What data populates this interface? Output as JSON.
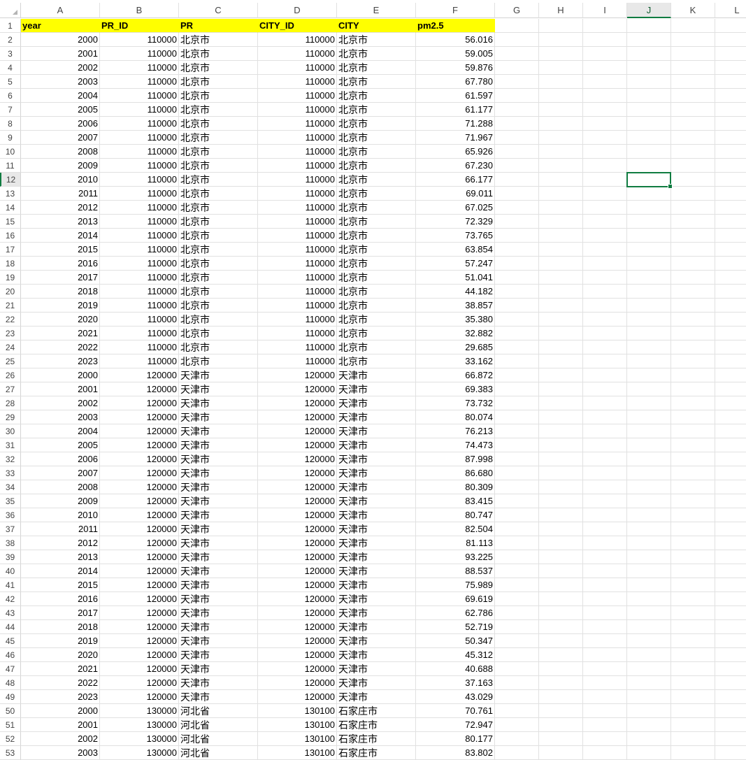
{
  "sheet": {
    "columns": [
      "A",
      "B",
      "C",
      "D",
      "E",
      "F",
      "G",
      "H",
      "I",
      "J",
      "K",
      "L"
    ],
    "selected_cell": "J12",
    "accent_color": "#107c41",
    "header_fill": "#ffff00",
    "header_row": [
      "year",
      "PR_ID",
      "PR",
      "CITY_ID",
      "CITY",
      "pm2.5"
    ],
    "rows": [
      [
        "2000",
        "110000",
        "北京市",
        "110000",
        "北京市",
        "56.016"
      ],
      [
        "2001",
        "110000",
        "北京市",
        "110000",
        "北京市",
        "59.005"
      ],
      [
        "2002",
        "110000",
        "北京市",
        "110000",
        "北京市",
        "59.876"
      ],
      [
        "2003",
        "110000",
        "北京市",
        "110000",
        "北京市",
        "67.780"
      ],
      [
        "2004",
        "110000",
        "北京市",
        "110000",
        "北京市",
        "61.597"
      ],
      [
        "2005",
        "110000",
        "北京市",
        "110000",
        "北京市",
        "61.177"
      ],
      [
        "2006",
        "110000",
        "北京市",
        "110000",
        "北京市",
        "71.288"
      ],
      [
        "2007",
        "110000",
        "北京市",
        "110000",
        "北京市",
        "71.967"
      ],
      [
        "2008",
        "110000",
        "北京市",
        "110000",
        "北京市",
        "65.926"
      ],
      [
        "2009",
        "110000",
        "北京市",
        "110000",
        "北京市",
        "67.230"
      ],
      [
        "2010",
        "110000",
        "北京市",
        "110000",
        "北京市",
        "66.177"
      ],
      [
        "2011",
        "110000",
        "北京市",
        "110000",
        "北京市",
        "69.011"
      ],
      [
        "2012",
        "110000",
        "北京市",
        "110000",
        "北京市",
        "67.025"
      ],
      [
        "2013",
        "110000",
        "北京市",
        "110000",
        "北京市",
        "72.329"
      ],
      [
        "2014",
        "110000",
        "北京市",
        "110000",
        "北京市",
        "73.765"
      ],
      [
        "2015",
        "110000",
        "北京市",
        "110000",
        "北京市",
        "63.854"
      ],
      [
        "2016",
        "110000",
        "北京市",
        "110000",
        "北京市",
        "57.247"
      ],
      [
        "2017",
        "110000",
        "北京市",
        "110000",
        "北京市",
        "51.041"
      ],
      [
        "2018",
        "110000",
        "北京市",
        "110000",
        "北京市",
        "44.182"
      ],
      [
        "2019",
        "110000",
        "北京市",
        "110000",
        "北京市",
        "38.857"
      ],
      [
        "2020",
        "110000",
        "北京市",
        "110000",
        "北京市",
        "35.380"
      ],
      [
        "2021",
        "110000",
        "北京市",
        "110000",
        "北京市",
        "32.882"
      ],
      [
        "2022",
        "110000",
        "北京市",
        "110000",
        "北京市",
        "29.685"
      ],
      [
        "2023",
        "110000",
        "北京市",
        "110000",
        "北京市",
        "33.162"
      ],
      [
        "2000",
        "120000",
        "天津市",
        "120000",
        "天津市",
        "66.872"
      ],
      [
        "2001",
        "120000",
        "天津市",
        "120000",
        "天津市",
        "69.383"
      ],
      [
        "2002",
        "120000",
        "天津市",
        "120000",
        "天津市",
        "73.732"
      ],
      [
        "2003",
        "120000",
        "天津市",
        "120000",
        "天津市",
        "80.074"
      ],
      [
        "2004",
        "120000",
        "天津市",
        "120000",
        "天津市",
        "76.213"
      ],
      [
        "2005",
        "120000",
        "天津市",
        "120000",
        "天津市",
        "74.473"
      ],
      [
        "2006",
        "120000",
        "天津市",
        "120000",
        "天津市",
        "87.998"
      ],
      [
        "2007",
        "120000",
        "天津市",
        "120000",
        "天津市",
        "86.680"
      ],
      [
        "2008",
        "120000",
        "天津市",
        "120000",
        "天津市",
        "80.309"
      ],
      [
        "2009",
        "120000",
        "天津市",
        "120000",
        "天津市",
        "83.415"
      ],
      [
        "2010",
        "120000",
        "天津市",
        "120000",
        "天津市",
        "80.747"
      ],
      [
        "2011",
        "120000",
        "天津市",
        "120000",
        "天津市",
        "82.504"
      ],
      [
        "2012",
        "120000",
        "天津市",
        "120000",
        "天津市",
        "81.113"
      ],
      [
        "2013",
        "120000",
        "天津市",
        "120000",
        "天津市",
        "93.225"
      ],
      [
        "2014",
        "120000",
        "天津市",
        "120000",
        "天津市",
        "88.537"
      ],
      [
        "2015",
        "120000",
        "天津市",
        "120000",
        "天津市",
        "75.989"
      ],
      [
        "2016",
        "120000",
        "天津市",
        "120000",
        "天津市",
        "69.619"
      ],
      [
        "2017",
        "120000",
        "天津市",
        "120000",
        "天津市",
        "62.786"
      ],
      [
        "2018",
        "120000",
        "天津市",
        "120000",
        "天津市",
        "52.719"
      ],
      [
        "2019",
        "120000",
        "天津市",
        "120000",
        "天津市",
        "50.347"
      ],
      [
        "2020",
        "120000",
        "天津市",
        "120000",
        "天津市",
        "45.312"
      ],
      [
        "2021",
        "120000",
        "天津市",
        "120000",
        "天津市",
        "40.688"
      ],
      [
        "2022",
        "120000",
        "天津市",
        "120000",
        "天津市",
        "37.163"
      ],
      [
        "2023",
        "120000",
        "天津市",
        "120000",
        "天津市",
        "43.029"
      ],
      [
        "2000",
        "130000",
        "河北省",
        "130100",
        "石家庄市",
        "70.761"
      ],
      [
        "2001",
        "130000",
        "河北省",
        "130100",
        "石家庄市",
        "72.947"
      ],
      [
        "2002",
        "130000",
        "河北省",
        "130100",
        "石家庄市",
        "80.177"
      ],
      [
        "2003",
        "130000",
        "河北省",
        "130100",
        "石家庄市",
        "83.802"
      ]
    ]
  }
}
